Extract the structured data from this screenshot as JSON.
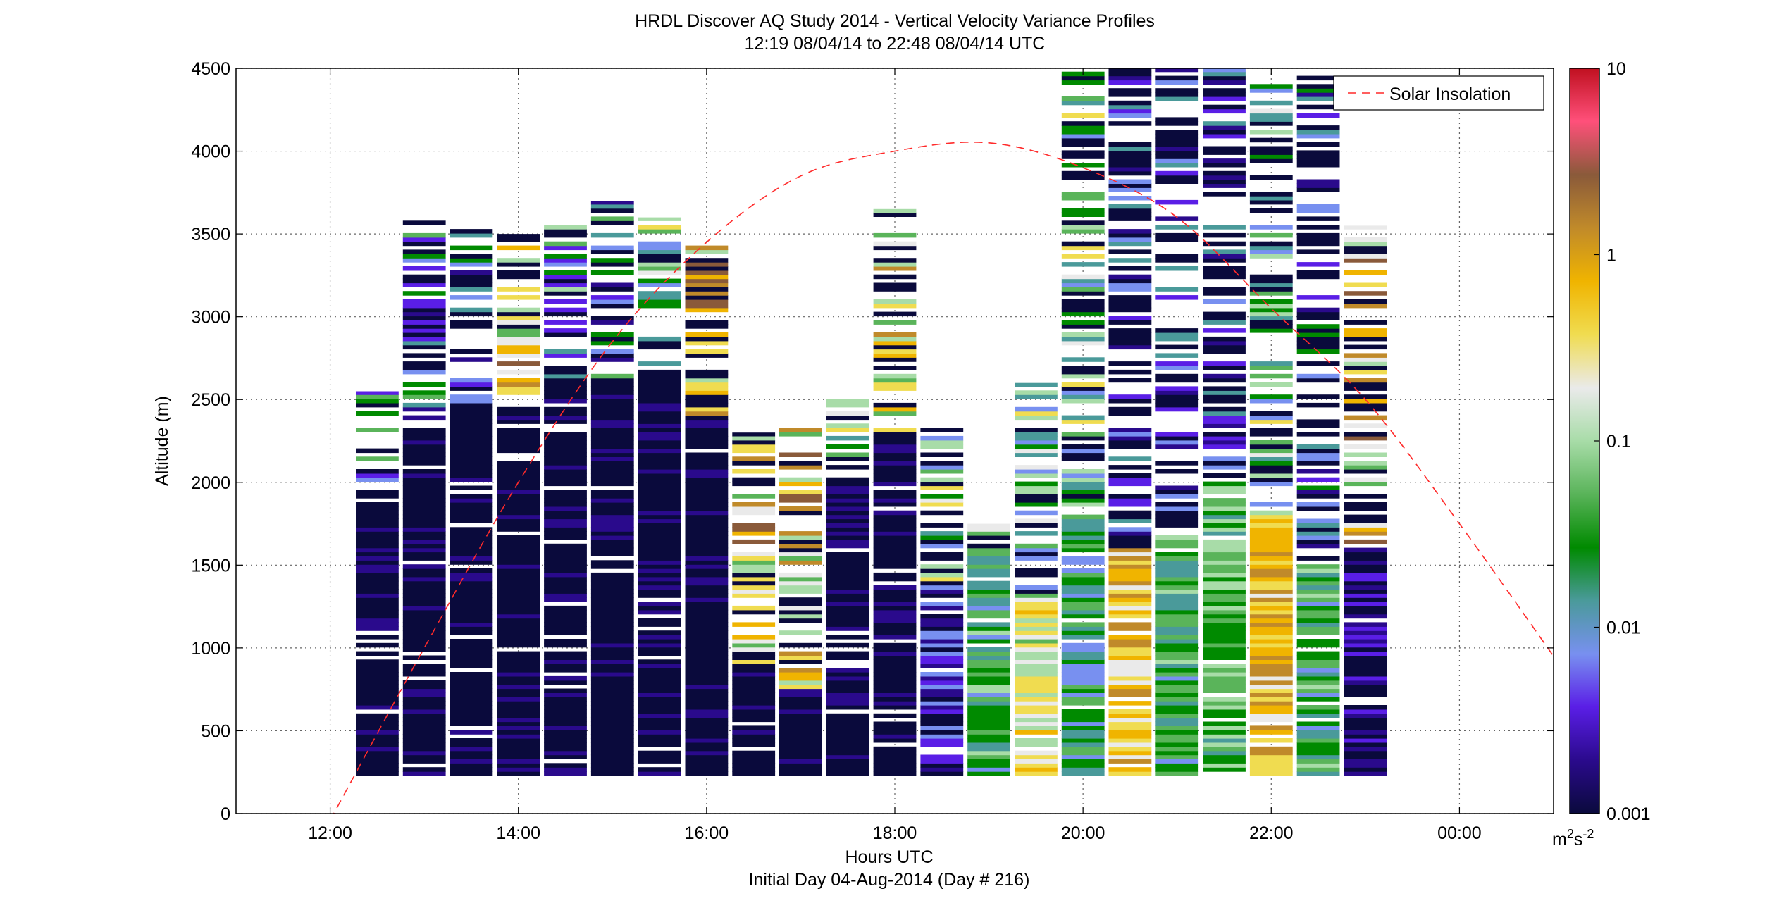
{
  "chart_data": {
    "type": "heatmap",
    "title": "HRDL Discover AQ Study 2014 - Vertical Velocity Variance Profiles",
    "subtitle": "12:19 08/04/14 to 22:48 08/04/14  UTC",
    "xlabel": "Hours UTC",
    "xlabel2": "Initial Day 04-Aug-2014 (Day # 216)",
    "ylabel": "Altitude (m)",
    "xlim_hours": [
      11.0,
      25.0
    ],
    "ylim": [
      0,
      4500
    ],
    "x_ticks": [
      {
        "hour": 12,
        "label": "12:00"
      },
      {
        "hour": 14,
        "label": "14:00"
      },
      {
        "hour": 16,
        "label": "16:00"
      },
      {
        "hour": 18,
        "label": "18:00"
      },
      {
        "hour": 20,
        "label": "20:00"
      },
      {
        "hour": 22,
        "label": "22:00"
      },
      {
        "hour": 24,
        "label": "00:00"
      }
    ],
    "y_ticks": [
      0,
      500,
      1000,
      1500,
      2000,
      2500,
      3000,
      3500,
      4000,
      4500
    ],
    "grid": true,
    "color_scale": "log",
    "colorbar": {
      "range": [
        0.001,
        10
      ],
      "tick_labels": [
        "0.001",
        "0.01",
        "0.1",
        "1",
        "10"
      ],
      "unit_main": "m",
      "unit_sup1": "2",
      "unit_mid": "s",
      "unit_sup2": "-2",
      "colors": [
        "#0a0a3c",
        "#2a0a8c",
        "#5a1ee6",
        "#7890f0",
        "#4a9a9a",
        "#008a00",
        "#5ab45a",
        "#a8dca8",
        "#eaeaea",
        "#f0dc50",
        "#f0b400",
        "#c08a2a",
        "#8a5a3a",
        "#ff507a",
        "#c01020"
      ]
    },
    "legend": {
      "position": "top-right",
      "entries": [
        "Solar Insolation"
      ]
    },
    "solar_insolation": {
      "color": "#ff2a2a",
      "points": [
        [
          12.0,
          -40
        ],
        [
          13.0,
          1000
        ],
        [
          14.0,
          2000
        ],
        [
          15.0,
          2850
        ],
        [
          16.0,
          3450
        ],
        [
          17.0,
          3850
        ],
        [
          18.0,
          4000
        ],
        [
          19.0,
          4050
        ],
        [
          20.0,
          3900
        ],
        [
          21.0,
          3600
        ],
        [
          22.0,
          3050
        ],
        [
          23.0,
          2500
        ],
        [
          24.0,
          1750
        ],
        [
          25.0,
          950
        ]
      ]
    },
    "profiles": [
      {
        "hour": 12.5,
        "bottom": 230,
        "top": 2550,
        "solid_below": 1950,
        "level": 0.001,
        "upper_mix": 0.02
      },
      {
        "hour": 13.0,
        "bottom": 230,
        "top": 3600,
        "solid_below": 2400,
        "level": 0.001,
        "upper_mix": 0.01
      },
      {
        "hour": 13.5,
        "bottom": 230,
        "top": 3550,
        "solid_below": 2450,
        "level": 0.001,
        "upper_mix": 0.01
      },
      {
        "hour": 14.0,
        "bottom": 230,
        "top": 3500,
        "solid_below": 2400,
        "level": 0.001,
        "upper_mix": 0.3
      },
      {
        "hour": 14.5,
        "bottom": 230,
        "top": 3600,
        "solid_below": 2600,
        "level": 0.001,
        "upper_mix": 0.02
      },
      {
        "hour": 15.0,
        "bottom": 230,
        "top": 3700,
        "solid_below": 2600,
        "level": 0.001,
        "upper_mix": 0.01
      },
      {
        "hour": 15.5,
        "bottom": 230,
        "top": 3600,
        "solid_below": 2700,
        "level": 0.001,
        "upper_mix": 0.05
      },
      {
        "hour": 16.0,
        "bottom": 230,
        "top": 3450,
        "solid_below": 2400,
        "level": 0.001,
        "upper_mix": 0.4
      },
      {
        "hour": 16.5,
        "bottom": 230,
        "top": 2300,
        "solid_below": 900,
        "level": 0.001,
        "upper_mix": 0.3
      },
      {
        "hour": 17.0,
        "bottom": 230,
        "top": 2350,
        "solid_below": 750,
        "level": 0.001,
        "upper_mix": 0.4
      },
      {
        "hour": 17.5,
        "bottom": 230,
        "top": 2600,
        "solid_below": 2000,
        "level": 0.001,
        "upper_mix": 0.05
      },
      {
        "hour": 18.0,
        "bottom": 230,
        "top": 3650,
        "solid_below": 2300,
        "level": 0.001,
        "upper_mix": 0.2
      },
      {
        "hour": 18.5,
        "bottom": 230,
        "top": 2400,
        "solid_below": 1400,
        "level": 0.003,
        "upper_mix": 0.05
      },
      {
        "hour": 19.0,
        "bottom": 230,
        "top": 1750,
        "solid_below": 1600,
        "level": 0.03,
        "upper_mix": 0.4
      },
      {
        "hour": 19.5,
        "bottom": 230,
        "top": 2600,
        "solid_below": 1300,
        "level": 0.2,
        "upper_mix": 0.05
      },
      {
        "hour": 20.0,
        "bottom": 230,
        "top": 4500,
        "solid_below": 1800,
        "level": 0.02,
        "upper_mix": 0.05
      },
      {
        "hour": 20.5,
        "bottom": 230,
        "top": 4500,
        "solid_below": 1600,
        "level": 0.5,
        "upper_mix": 0.003
      },
      {
        "hour": 21.0,
        "bottom": 230,
        "top": 4500,
        "solid_below": 1700,
        "level": 0.03,
        "upper_mix": 0.003
      },
      {
        "hour": 21.5,
        "bottom": 230,
        "top": 4500,
        "solid_below": 2000,
        "level": 0.05,
        "upper_mix": 0.004
      },
      {
        "hour": 22.0,
        "bottom": 230,
        "top": 4500,
        "solid_below": 1800,
        "level": 0.5,
        "upper_mix": 0.05
      },
      {
        "hour": 22.5,
        "bottom": 230,
        "top": 4500,
        "solid_below": 1500,
        "level": 0.03,
        "upper_mix": 0.005
      },
      {
        "hour": 23.0,
        "bottom": 230,
        "top": 3550,
        "solid_below": 1600,
        "level": 0.002,
        "upper_mix": 0.3
      }
    ]
  }
}
